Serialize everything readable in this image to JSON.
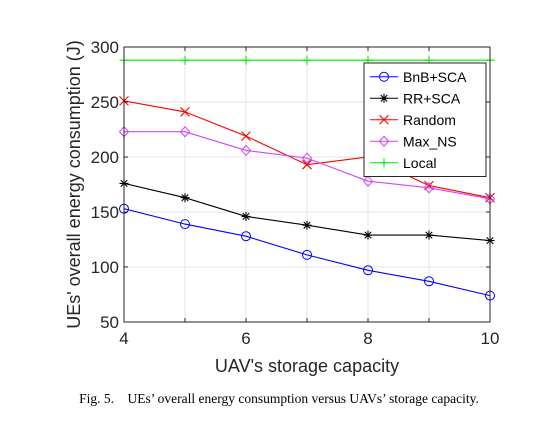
{
  "chart_data": {
    "type": "line",
    "xlabel": "UAV's storage capacity",
    "ylabel": "UEs' overall energy consumption (J)",
    "xlim": [
      4,
      10
    ],
    "ylim": [
      50,
      300
    ],
    "xticks": [
      4,
      6,
      8,
      10
    ],
    "yticks": [
      50,
      100,
      150,
      200,
      250,
      300
    ],
    "grid": true,
    "legend_position": "top-right",
    "x": [
      4,
      5,
      6,
      7,
      8,
      9,
      10
    ],
    "series": [
      {
        "name": "BnB+SCA",
        "values": [
          153,
          139,
          128,
          111,
          97,
          87,
          74
        ],
        "color": "#0000ff",
        "marker": "circle"
      },
      {
        "name": "RR+SCA",
        "values": [
          176,
          163,
          146,
          138,
          129,
          129,
          124
        ],
        "color": "#000000",
        "marker": "asterisk"
      },
      {
        "name": "Random",
        "values": [
          251,
          241,
          219,
          193,
          200,
          174,
          163
        ],
        "color": "#ff0000",
        "marker": "x"
      },
      {
        "name": "Max_NS",
        "values": [
          223,
          223,
          206,
          199,
          178,
          172,
          162
        ],
        "color": "#cc44ff",
        "marker": "diamond"
      },
      {
        "name": "Local",
        "values": [
          288,
          288,
          288,
          288,
          288,
          288,
          288
        ],
        "color": "#00ee00",
        "marker": "plus"
      }
    ]
  },
  "caption": "Fig. 5. UEs’ overall energy consumption versus UAVs’ storage capacity."
}
